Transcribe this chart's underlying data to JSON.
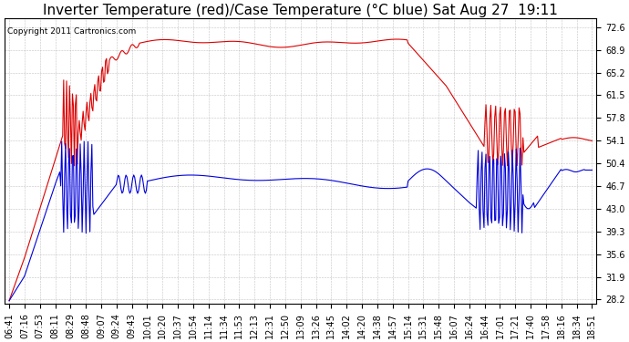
{
  "title": "Inverter Temperature (red)/Case Temperature (°C blue) Sat Aug 27  19:11",
  "copyright": "Copyright 2011 Cartronics.com",
  "yticks": [
    28.2,
    31.9,
    35.6,
    39.3,
    43.0,
    46.7,
    50.4,
    54.1,
    57.8,
    61.5,
    65.2,
    68.9,
    72.6
  ],
  "ylim": [
    27.5,
    74.0
  ],
  "xtick_labels": [
    "06:41",
    "07:16",
    "07:53",
    "08:11",
    "08:29",
    "08:48",
    "09:07",
    "09:24",
    "09:43",
    "10:01",
    "10:20",
    "10:37",
    "10:54",
    "11:14",
    "11:34",
    "11:53",
    "12:13",
    "12:31",
    "12:50",
    "13:09",
    "13:26",
    "13:45",
    "14:02",
    "14:20",
    "14:38",
    "14:57",
    "15:14",
    "15:31",
    "15:48",
    "16:07",
    "16:24",
    "16:44",
    "17:01",
    "17:21",
    "17:40",
    "17:58",
    "18:16",
    "18:34",
    "18:51"
  ],
  "bg_color": "#ffffff",
  "grid_color": "#aaaaaa",
  "red_color": "#dd0000",
  "blue_color": "#0000dd",
  "title_fontsize": 11,
  "copyright_fontsize": 6.5,
  "tick_fontsize": 7
}
